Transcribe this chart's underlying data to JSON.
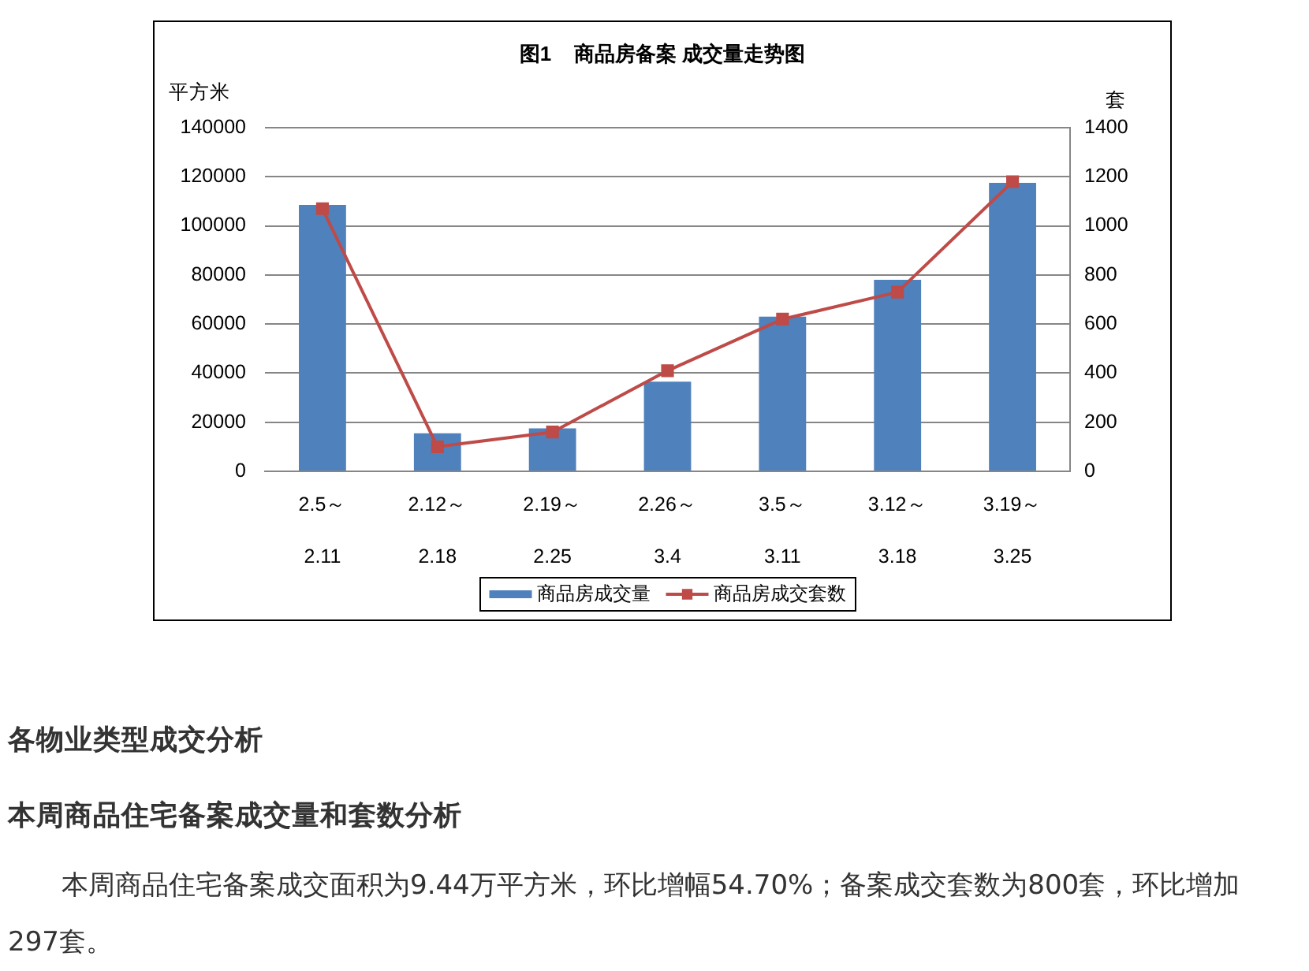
{
  "chart_data": {
    "type": "bar",
    "title": "图1    商品房备案 成交量走势图",
    "ylabel": "平方米",
    "y2label": "套",
    "categories": [
      "2.5～\n2.11",
      "2.12～\n2.18",
      "2.19～\n2.25",
      "2.26～\n3.4",
      "3.5～\n3.11",
      "3.12～\n3.18",
      "3.19～\n3.25"
    ],
    "series": [
      {
        "name": "商品房成交量",
        "color": "#4f81bd",
        "values": [
          108500,
          15500,
          17500,
          36500,
          63000,
          78000,
          117500
        ]
      },
      {
        "name": "商品房成交套数",
        "type": "line",
        "axis": "y2",
        "color": "#be4b48",
        "values": [
          1070,
          100,
          160,
          410,
          620,
          730,
          1180
        ]
      }
    ],
    "ylim": [
      0,
      140000
    ],
    "yticks": [
      0,
      20000,
      40000,
      60000,
      80000,
      100000,
      120000,
      140000
    ],
    "y2lim": [
      0,
      1400
    ],
    "y2ticks": [
      0,
      200,
      400,
      600,
      800,
      1000,
      1200,
      1400
    ],
    "grid": "y",
    "legend": "bottom",
    "marker": "square",
    "line_style": "solid",
    "annotations": [
      "各物业类型成交分析",
      "本周商品住宅备案成交量和套数分析",
      "本周商品住宅备案成交面积为9.44万平方米，环比增幅54.70%；备案成交套数为800套，环比增加297套。"
    ]
  }
}
